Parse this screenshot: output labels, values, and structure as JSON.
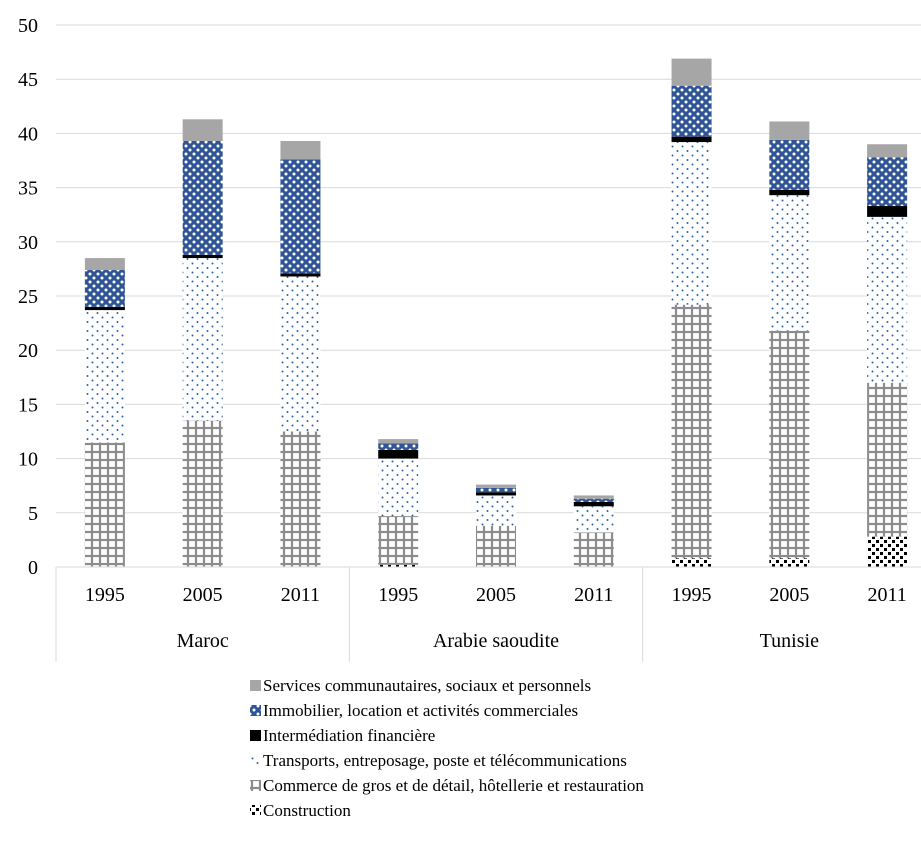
{
  "chart_data": {
    "type": "bar",
    "stacked": true,
    "groups": [
      {
        "name": "Maroc",
        "years": [
          "1995",
          "2005",
          "2011"
        ]
      },
      {
        "name": "Arabie saoudite",
        "years": [
          "1995",
          "2005",
          "2011"
        ]
      },
      {
        "name": "Tunisie",
        "years": [
          "1995",
          "2005",
          "2011"
        ]
      }
    ],
    "ylim": [
      0,
      50
    ],
    "yticks": [
      "0",
      "5",
      "10",
      "15",
      "20",
      "25",
      "30",
      "35",
      "40",
      "45",
      "50"
    ],
    "grid": true,
    "legend_position": "bottom",
    "series": [
      {
        "name": "Construction",
        "pattern": "dots-black",
        "values": [
          0,
          0,
          0,
          0.2,
          0,
          0,
          0.8,
          0.8,
          2.8
        ]
      },
      {
        "name": "Commerce de gros et de détail, hôtellerie et restauration",
        "pattern": "grid-gray",
        "values": [
          11.5,
          13.5,
          12.5,
          4.5,
          3.8,
          3.2,
          23.4,
          21.0,
          14.2
        ]
      },
      {
        "name": "Transports, entreposage, poste et télécommunications",
        "pattern": "dots-blue",
        "values": [
          12.2,
          15.0,
          14.3,
          5.3,
          2.8,
          2.4,
          15.0,
          12.5,
          15.3
        ]
      },
      {
        "name": "Intermédiation financière",
        "pattern": "solid-black",
        "values": [
          0.3,
          0.3,
          0.3,
          0.8,
          0.3,
          0.4,
          0.5,
          0.5,
          1.0
        ]
      },
      {
        "name": "Immobilier, location et activités commerciales",
        "pattern": "cross-blue",
        "values": [
          3.4,
          10.5,
          10.5,
          0.6,
          0.4,
          0.3,
          4.7,
          4.6,
          4.5
        ]
      },
      {
        "name": "Services communautaires, sociaux et personnels",
        "pattern": "solid-gray",
        "values": [
          1.1,
          2.0,
          1.7,
          0.4,
          0.3,
          0.3,
          2.5,
          1.7,
          1.2
        ]
      }
    ]
  }
}
